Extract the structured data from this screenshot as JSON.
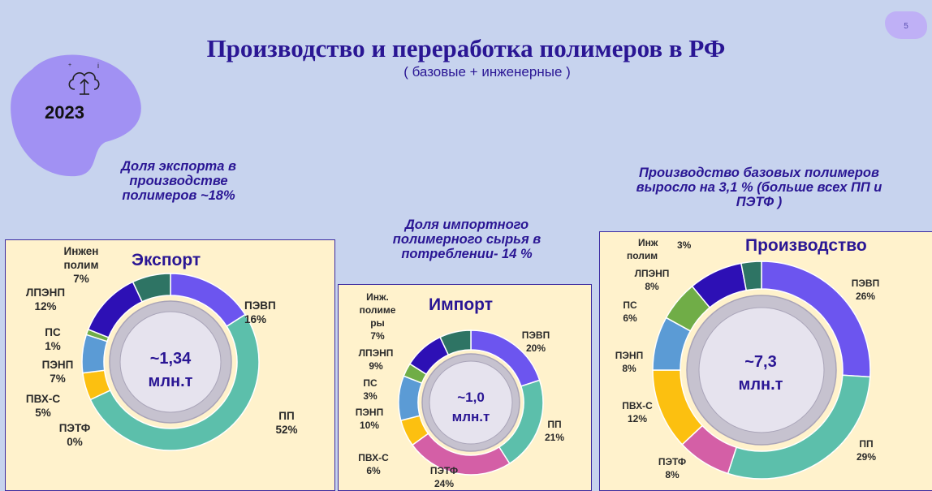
{
  "header": {
    "title": "Производство и переработка  полимеров в РФ",
    "subtitle": "( базовые + инженерные )",
    "page_number": "5",
    "year": "2023"
  },
  "notes": {
    "export_share": [
      "Доля экспорта в",
      "производстве",
      "полимеров ~18%"
    ],
    "import_share": [
      "Доля импортного",
      "полимерного сырья  в",
      "потреблении- 14 %"
    ],
    "production_growth": [
      "Производство базовых полимеров",
      "выросло на 3,1 % (больше всех ПП и",
      "ПЭТФ )"
    ]
  },
  "colors": {
    "ПЭВП": "#6c55ef",
    "ПП": "#5cbfab",
    "ПЭТФ": "#d45fa6",
    "ПВХ-С": "#fcc010",
    "ПЭНП": "#5b9bd5",
    "ПС": "#70ad47",
    "ЛПЭНП": "#2d10b5",
    "Инж": "#2e7464"
  },
  "chart_data": [
    {
      "type": "pie",
      "title": "Экспорт",
      "center": [
        "~1,34",
        "млн.т"
      ],
      "categories": [
        "ПЭВП",
        "ПП",
        "ПЭТФ",
        "ПВХ-С",
        "ПЭНП",
        "ПС",
        "ЛПЭНП",
        "Инж. полим"
      ],
      "values": [
        16,
        52,
        0,
        5,
        7,
        1,
        12,
        7
      ],
      "labels": [
        {
          "lines": [
            "ПЭВП",
            "16%"
          ]
        },
        {
          "lines": [
            "ПП",
            "52%"
          ]
        },
        {
          "lines": [
            "ПЭТФ",
            "0%"
          ]
        },
        {
          "lines": [
            "ПВХ-С",
            "5%"
          ]
        },
        {
          "lines": [
            "ПЭНП",
            "7%"
          ]
        },
        {
          "lines": [
            "ПС",
            "1%"
          ]
        },
        {
          "lines": [
            "ЛПЭНП",
            "12%"
          ]
        },
        {
          "lines": [
            "Инжен",
            "полим",
            "7%"
          ]
        }
      ]
    },
    {
      "type": "pie",
      "title": "Импорт",
      "center": [
        "~1,0",
        "млн.т"
      ],
      "categories": [
        "ПЭВП",
        "ПП",
        "ПЭТФ",
        "ПВХ-С",
        "ПЭНП",
        "ПС",
        "ЛПЭНП",
        "Инж. полимеры"
      ],
      "values": [
        20,
        21,
        24,
        6,
        10,
        3,
        9,
        7
      ],
      "labels": [
        {
          "lines": [
            "ПЭВП",
            "20%"
          ]
        },
        {
          "lines": [
            "ПП",
            "21%"
          ]
        },
        {
          "lines": [
            "ПЭТФ",
            "24%"
          ]
        },
        {
          "lines": [
            "ПВХ-С",
            "6%"
          ]
        },
        {
          "lines": [
            "ПЭНП",
            "10%"
          ]
        },
        {
          "lines": [
            "ПС",
            "3%"
          ]
        },
        {
          "lines": [
            "ЛПЭНП",
            "9%"
          ]
        },
        {
          "lines": [
            "Инж.",
            "полиме",
            "ры",
            "7%"
          ]
        }
      ]
    },
    {
      "type": "pie",
      "title": "Производство",
      "center": [
        "~7,3",
        "млн.т"
      ],
      "categories": [
        "ПЭВП",
        "ПП",
        "ПЭТФ",
        "ПВХ-С",
        "ПЭНП",
        "ПС",
        "ЛПЭНП",
        "Инж. полим"
      ],
      "values": [
        26,
        29,
        8,
        12,
        8,
        6,
        8,
        3
      ],
      "labels": [
        {
          "lines": [
            "ПЭВП",
            "26%"
          ]
        },
        {
          "lines": [
            "ПП",
            "29%"
          ]
        },
        {
          "lines": [
            "ПЭТФ",
            "8%"
          ]
        },
        {
          "lines": [
            "ПВХ-С",
            "12%"
          ]
        },
        {
          "lines": [
            "ПЭНП",
            "8%"
          ]
        },
        {
          "lines": [
            "ПС",
            "6%"
          ]
        },
        {
          "lines": [
            "ЛПЭНП",
            "8%"
          ]
        },
        {
          "lines": [
            "Инж",
            "полим",
            "3%"
          ]
        }
      ]
    }
  ]
}
